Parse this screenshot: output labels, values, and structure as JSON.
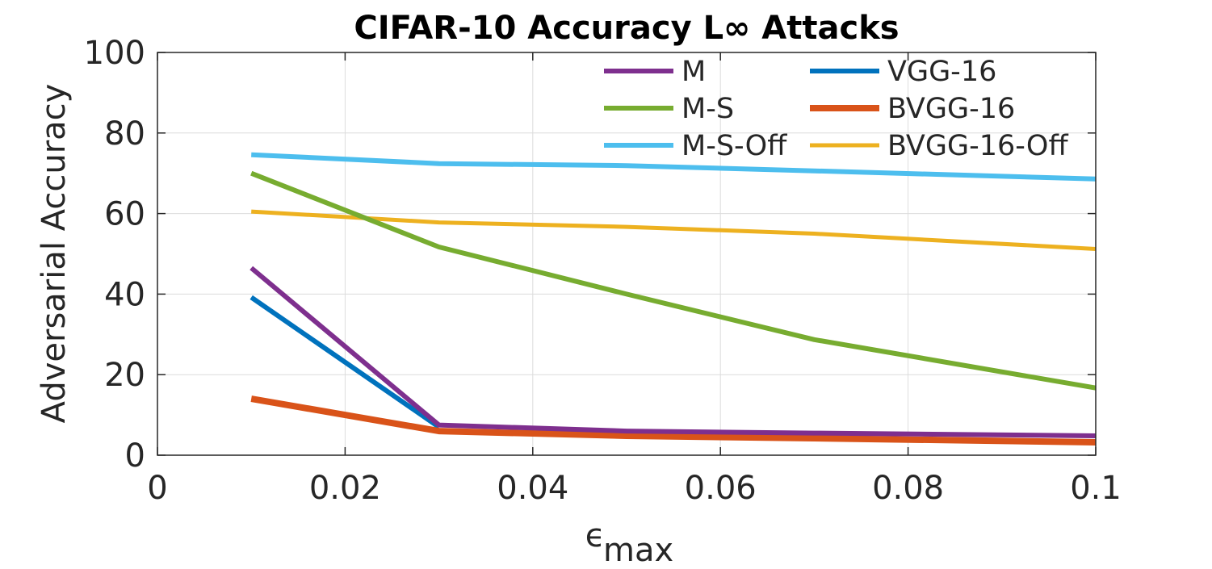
{
  "chart_data": {
    "type": "line",
    "title": "CIFAR-10 Accuracy L∞ Attacks",
    "xlabel": "ϵ",
    "xlabel_subscript": "max",
    "ylabel": "Adversarial Accuracy",
    "xlim": [
      0,
      0.1
    ],
    "ylim": [
      0,
      100
    ],
    "xticks": [
      0,
      0.02,
      0.04,
      0.06,
      0.08,
      0.1
    ],
    "xtick_labels": [
      "0",
      "0.02",
      "0.04",
      "0.06",
      "0.08",
      "0.1"
    ],
    "yticks": [
      0,
      20,
      40,
      60,
      80,
      100
    ],
    "ytick_labels": [
      "0",
      "20",
      "40",
      "60",
      "80",
      "100"
    ],
    "grid": true,
    "legend_position": "top-right",
    "legend_columns": 2,
    "series": [
      {
        "name": "M",
        "color": "#7E2F8E",
        "x": [
          0.01,
          0.03,
          0.05,
          0.07,
          0.1
        ],
        "values": [
          46.5,
          7.5,
          6.0,
          5.5,
          4.8
        ]
      },
      {
        "name": "M-S",
        "color": "#77AC30",
        "x": [
          0.01,
          0.03,
          0.05,
          0.07,
          0.1
        ],
        "values": [
          70.0,
          51.7,
          40.0,
          28.7,
          16.7
        ]
      },
      {
        "name": "M-S-Off",
        "color": "#4DBEEE",
        "x": [
          0.01,
          0.03,
          0.05,
          0.07,
          0.1
        ],
        "values": [
          74.6,
          72.4,
          71.9,
          70.6,
          68.6
        ]
      },
      {
        "name": "VGG-16",
        "color": "#0072BD",
        "x": [
          0.01,
          0.03
        ],
        "values": [
          39.2,
          7.0
        ]
      },
      {
        "name": "BVGG-16",
        "color": "#D95319",
        "x": [
          0.01,
          0.03,
          0.05,
          0.07,
          0.1
        ],
        "values": [
          14.0,
          6.0,
          4.8,
          4.2,
          3.2
        ]
      },
      {
        "name": "BVGG-16-Off",
        "color": "#EDB120",
        "x": [
          0.01,
          0.03,
          0.05,
          0.07,
          0.1
        ],
        "values": [
          60.5,
          57.8,
          56.7,
          55.0,
          51.2
        ]
      }
    ]
  }
}
